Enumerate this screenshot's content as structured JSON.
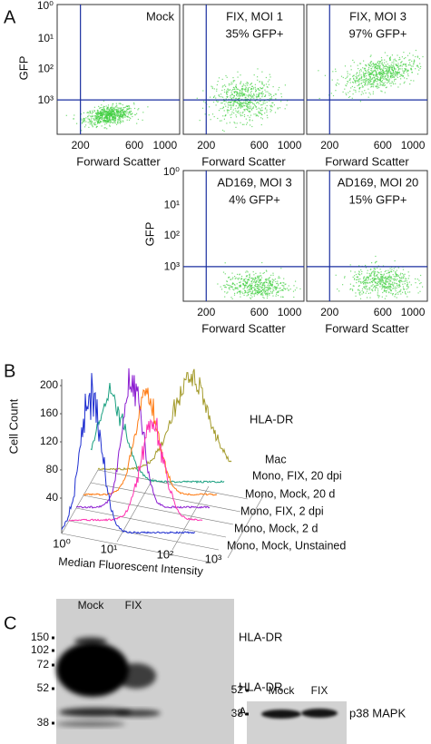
{
  "figure": {
    "panel_a": {
      "label": "A",
      "y_axis_label": "GFP",
      "x_axis_label": "Forward Scatter",
      "y_tick_labels": [
        "10³",
        "10²",
        "10¹",
        "10⁰"
      ],
      "x_tick_labels": [
        "200",
        "600",
        "1000"
      ],
      "plots": [
        {
          "title_lines": [
            "Mock"
          ]
        },
        {
          "title_lines": [
            "FIX, MOI 1",
            "35% GFP+"
          ]
        },
        {
          "title_lines": [
            "FIX, MOI 3",
            "97% GFP+"
          ]
        },
        {
          "title_lines": [
            "AD169, MOI 3",
            "4% GFP+"
          ]
        },
        {
          "title_lines": [
            "AD169, MOI 20",
            "15% GFP+"
          ]
        }
      ]
    },
    "panel_b": {
      "label": "B",
      "y_axis_label": "Cell Count",
      "y_tick_labels": [
        "200",
        "160",
        "120",
        "80",
        "40"
      ],
      "x_tick_labels": [
        "10⁰",
        "10¹",
        "10²",
        "10³"
      ],
      "x_axis_label": "Median Fluorescent Intensity",
      "marker_label": "HLA-DR",
      "series_labels": [
        "Mono, Mock, Unstained",
        "Mono, Mock, 2 d",
        "Mono, FIX, 2 dpi",
        "Mono, Mock, 20 d",
        "Mono, FIX, 20 dpi",
        "Mac"
      ]
    },
    "panel_c": {
      "label": "C",
      "blot_1": {
        "lanes": [
          "Mock",
          "FIX"
        ],
        "mw_labels": [
          "150",
          "102",
          "72",
          "52",
          "38"
        ],
        "band_labels": [
          "HLA-DR",
          "HLA-DR",
          "Actin"
        ]
      },
      "blot_2": {
        "lanes": [
          "Mock",
          "FIX"
        ],
        "mw_labels": [
          "52",
          "38"
        ],
        "band_label": "p38 MAPK"
      }
    }
  }
}
